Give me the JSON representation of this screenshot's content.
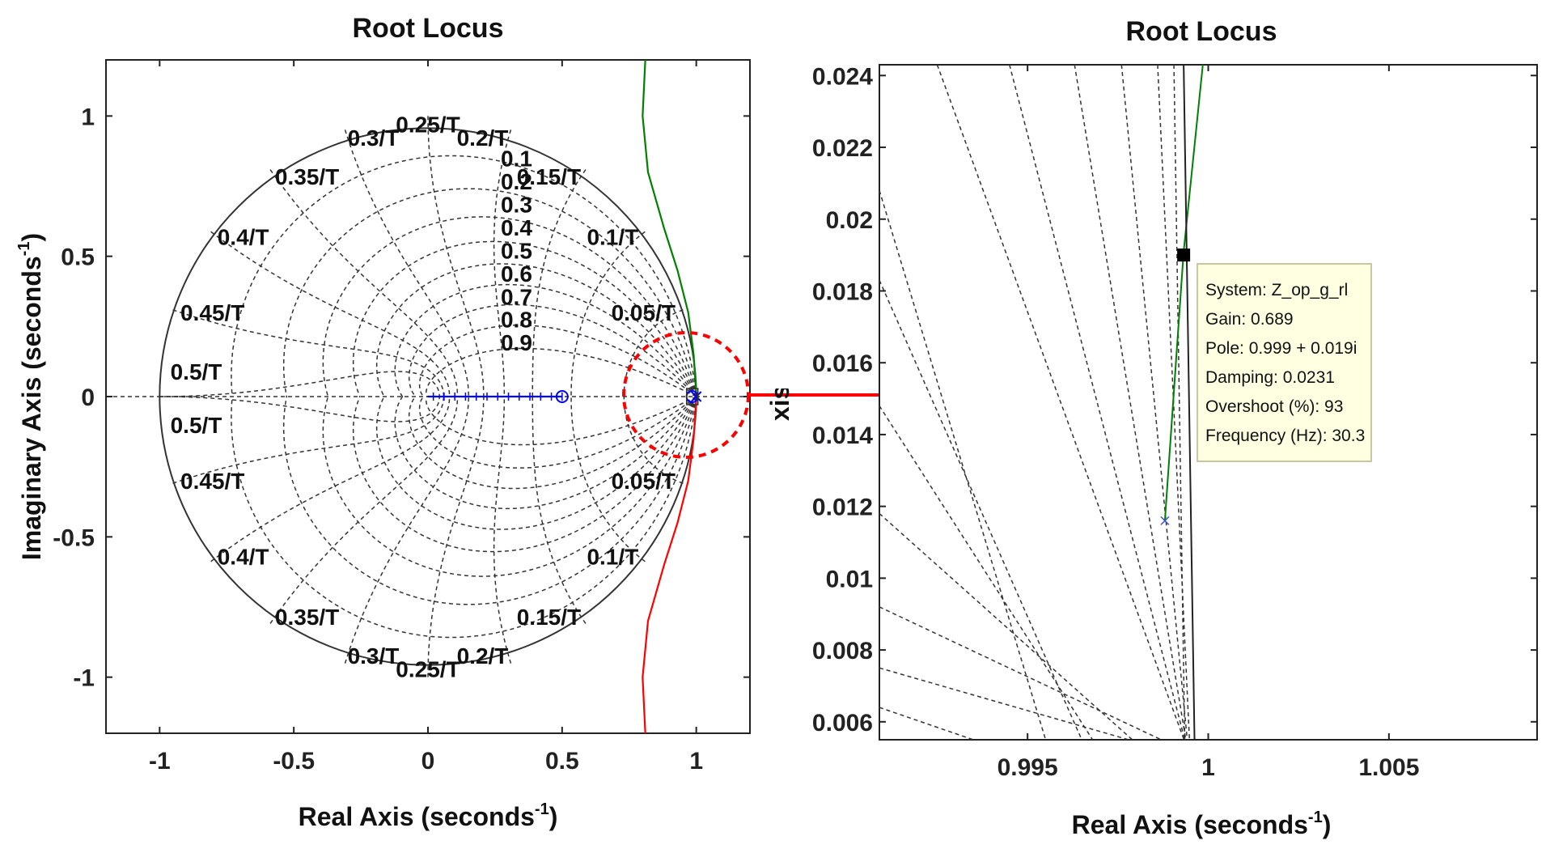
{
  "chart_data": [
    {
      "type": "root-locus",
      "title": "Root Locus",
      "xlabel": "Real Axis (seconds",
      "ylabel": "Imaginary Axis (seconds",
      "label_exponent": "-1",
      "xlim": [
        -1.2,
        1.2
      ],
      "ylim": [
        -1.2,
        1.2
      ],
      "xticks": [
        -1,
        -0.5,
        0,
        0.5,
        1
      ],
      "xtick_labels": [
        "-1",
        "-0.5",
        "0",
        "0.5",
        "1"
      ],
      "yticks": [
        -1,
        -0.5,
        0,
        0.5,
        1
      ],
      "ytick_labels": [
        "-1",
        "-0.5",
        "0",
        "0.5",
        "1"
      ],
      "unit_circle": true,
      "zeta_labels": [
        "0.1",
        "0.2",
        "0.3",
        "0.4",
        "0.5",
        "0.6",
        "0.7",
        "0.8",
        "0.9"
      ],
      "wn_labels": [
        {
          "text": "0.5/T",
          "wn": 0.5,
          "side": "upper"
        },
        {
          "text": "0.45/T",
          "wn": 0.45,
          "side": "upper"
        },
        {
          "text": "0.4/T",
          "wn": 0.4,
          "side": "upper"
        },
        {
          "text": "0.35/T",
          "wn": 0.35,
          "side": "upper"
        },
        {
          "text": "0.3/T",
          "wn": 0.3,
          "side": "upper"
        },
        {
          "text": "0.25/T",
          "wn": 0.25,
          "side": "upper"
        },
        {
          "text": "0.2/T",
          "wn": 0.2,
          "side": "upper"
        },
        {
          "text": "0.15/T",
          "wn": 0.15,
          "side": "upper"
        },
        {
          "text": "0.1/T",
          "wn": 0.1,
          "side": "upper"
        },
        {
          "text": "0.05/T",
          "wn": 0.05,
          "side": "upper"
        },
        {
          "text": "0.5/T",
          "wn": 0.5,
          "side": "lower"
        },
        {
          "text": "0.45/T",
          "wn": 0.45,
          "side": "lower"
        },
        {
          "text": "0.4/T",
          "wn": 0.4,
          "side": "lower"
        },
        {
          "text": "0.35/T",
          "wn": 0.35,
          "side": "lower"
        },
        {
          "text": "0.3/T",
          "wn": 0.3,
          "side": "lower"
        },
        {
          "text": "0.25/T",
          "wn": 0.25,
          "side": "lower"
        },
        {
          "text": "0.2/T",
          "wn": 0.2,
          "side": "lower"
        },
        {
          "text": "0.15/T",
          "wn": 0.15,
          "side": "lower"
        },
        {
          "text": "0.1/T",
          "wn": 0.1,
          "side": "lower"
        },
        {
          "text": "0.05/T",
          "wn": 0.05,
          "side": "lower"
        }
      ],
      "series": [
        {
          "color": "#0000ff",
          "points": [
            [
              0,
              0
            ],
            [
              0.5,
              0
            ]
          ]
        },
        {
          "color": "#008000",
          "points": [
            [
              0.999,
              0.019
            ],
            [
              0.99,
              0.15
            ],
            [
              0.97,
              0.3
            ],
            [
              0.93,
              0.45
            ],
            [
              0.88,
              0.6
            ],
            [
              0.82,
              0.8
            ],
            [
              0.8,
              1.0
            ],
            [
              0.81,
              1.2
            ]
          ]
        },
        {
          "color": "#ff0000",
          "points": [
            [
              0.999,
              -0.019
            ],
            [
              0.99,
              -0.15
            ],
            [
              0.97,
              -0.3
            ],
            [
              0.93,
              -0.45
            ],
            [
              0.88,
              -0.6
            ],
            [
              0.82,
              -0.8
            ],
            [
              0.8,
              -1.0
            ],
            [
              0.81,
              -1.2
            ]
          ]
        }
      ],
      "zeros": [
        [
          0.5,
          0
        ],
        [
          0.985,
          0
        ]
      ],
      "poles": [
        [
          1.0,
          0
        ]
      ],
      "annotation": "dashed red circle around (1, 0) with arrow to zoomed view"
    },
    {
      "type": "root-locus",
      "title": "Root Locus",
      "xlabel": "Real Axis (seconds",
      "ylabel": "Imaginary Axis (seconds",
      "label_exponent": "-1",
      "xlim": [
        0.9909,
        1.0091
      ],
      "ylim": [
        0.0055,
        0.0243
      ],
      "xticks": [
        0.995,
        1,
        1.005
      ],
      "xtick_labels": [
        "0.995",
        "1",
        "1.005"
      ],
      "yticks": [
        0.006,
        0.008,
        0.01,
        0.012,
        0.014,
        0.016,
        0.018,
        0.02,
        0.022,
        0.024
      ],
      "ytick_labels": [
        "0.006",
        "0.008",
        "0.01",
        "0.012",
        "0.014",
        "0.016",
        "0.018",
        "0.02",
        "0.022",
        "0.024"
      ],
      "series": [
        {
          "color": "#008000",
          "points": [
            [
              0.9988,
              0.0116
            ],
            [
              0.99932,
              0.0191
            ],
            [
              0.99985,
              0.0243
            ]
          ]
        },
        {
          "color": "#222222",
          "points": [
            [
              0.99932,
              0.0243
            ],
            [
              0.99962,
              0.0055
            ]
          ]
        }
      ],
      "poles": [
        [
          0.9988,
          0.0116
        ]
      ],
      "datatip": {
        "point": [
          0.999,
          0.019
        ],
        "lines": [
          "System: Z_op_g_rl",
          "Gain: 0.689",
          "Pole: 0.999 + 0.019i",
          "Damping: 0.0231",
          "Overshoot (%): 93",
          "Frequency (Hz): 30.3"
        ]
      }
    }
  ]
}
